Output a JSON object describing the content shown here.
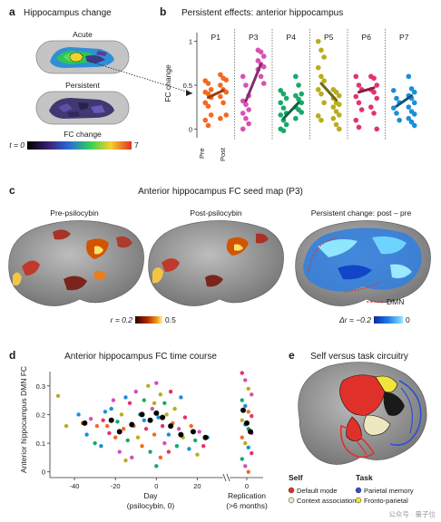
{
  "panel_a": {
    "label": "a",
    "title": "Hippocampus change",
    "top_label": "Acute",
    "bottom_label": "Persistent",
    "colorbar_title": "FC change",
    "colorbar_min": "t = 0",
    "colorbar_max": "7"
  },
  "panel_b": {
    "label": "b",
    "title": "Persistent effects: anterior hippocampus",
    "xticks": [
      "Pre",
      "Post"
    ]
  },
  "panel_c": {
    "label": "c",
    "title": "Anterior hippocampus FC seed map (P3)",
    "sub_titles": [
      "Pre-psilocybin",
      "Post-psilocybin",
      "Persistent change: post – pre"
    ],
    "colorbar_left": {
      "label": "r = 0.2",
      "max": "0.5"
    },
    "colorbar_right": {
      "label": "Δr = −0.2",
      "max": "0"
    },
    "legend_label": "DMN"
  },
  "panel_d": {
    "label": "d",
    "title": "Anterior hippocampus FC time course",
    "replication_label": "Replication",
    "replication_sublabel": "(>6 months)"
  },
  "panel_e": {
    "label": "e",
    "title": "Self versus task circuitry",
    "self_header": "Self",
    "task_header": "Task",
    "legend": [
      {
        "name": "Default mode",
        "color": "#e0302a",
        "group": "self"
      },
      {
        "name": "Context association",
        "color": "#efe7c0",
        "group": "self"
      },
      {
        "name": "Parietal memory",
        "color": "#2d4fd6",
        "group": "task"
      },
      {
        "name": "Fronto-parietal",
        "color": "#f2e43a",
        "group": "task"
      }
    ],
    "watermark": "公众号 · 量子位"
  },
  "chart_data": [
    {
      "type": "scatter",
      "ylabel": "FC change",
      "ylim": [
        -0.1,
        1.1
      ],
      "yticks": [
        0,
        0.5,
        1
      ],
      "series": [
        {
          "name": "P1",
          "color": "#f26a21",
          "pre": [
            0.55,
            0.52,
            0.45,
            0.42,
            0.4,
            0.36,
            0.3,
            0.26,
            0.16,
            0.1,
            0.04
          ],
          "post": [
            0.62,
            0.58,
            0.56,
            0.5,
            0.45,
            0.42,
            0.37,
            0.3,
            0.16,
            0.12
          ],
          "mean_pre": 0.36,
          "mean_post": 0.44
        },
        {
          "name": "P3",
          "color": "#d94fb2",
          "pre": [
            0.6,
            0.5,
            0.38,
            0.32,
            0.28,
            0.22,
            0.18,
            0.12,
            0.06,
            0.0
          ],
          "post": [
            0.9,
            0.88,
            0.83,
            0.78,
            0.74,
            0.71,
            0.68,
            0.6,
            0.52
          ],
          "mean_pre": 0.32,
          "mean_post": 0.74
        },
        {
          "name": "P4",
          "color": "#17a86b",
          "pre": [
            0.44,
            0.4,
            0.35,
            0.3,
            0.24,
            0.18,
            0.16,
            0.1,
            0.05,
            0.0,
            -0.02
          ],
          "post": [
            0.6,
            0.5,
            0.4,
            0.38,
            0.34,
            0.3,
            0.25,
            0.22,
            0.19,
            0.12
          ],
          "mean_pre": 0.12,
          "mean_post": 0.3
        },
        {
          "name": "P5",
          "color": "#b8ad1c",
          "pre": [
            1.0,
            0.9,
            0.82,
            0.7,
            0.6,
            0.55,
            0.45,
            0.4,
            0.3,
            0.15,
            0.1
          ],
          "post": [
            0.45,
            0.42,
            0.38,
            0.35,
            0.3,
            0.28,
            0.25,
            0.2,
            0.16,
            0.12,
            0.05,
            0.0
          ],
          "mean_pre": 0.52,
          "mean_post": 0.33
        },
        {
          "name": "P6",
          "color": "#e3336d",
          "pre": [
            0.6,
            0.5,
            0.45,
            0.37,
            0.3,
            0.22,
            0.1,
            0.02
          ],
          "post": [
            0.6,
            0.58,
            0.5,
            0.45,
            0.42,
            0.35,
            0.25,
            0.18,
            0.0
          ],
          "mean_pre": 0.42,
          "mean_post": 0.47
        },
        {
          "name": "P7",
          "color": "#1a8fd8",
          "pre": [
            0.44,
            0.35,
            0.3,
            0.24,
            0.18,
            0.1
          ],
          "post": [
            0.6,
            0.46,
            0.42,
            0.38,
            0.35,
            0.3,
            0.25,
            0.2,
            0.17,
            0.12,
            0.08,
            0.04
          ],
          "mean_pre": 0.26,
          "mean_post": 0.38
        }
      ]
    },
    {
      "type": "scatter",
      "xlabel": "Day",
      "xlabel_sub": "(psilocybin, 0)",
      "ylabel": "Anterior hippocampus DMN FC",
      "xticks": [
        -40,
        -20,
        0,
        20
      ],
      "replication_tick": 0,
      "yticks": [
        0,
        0.1,
        0.2,
        0.3
      ],
      "xlim": [
        -52,
        30
      ],
      "ylim": [
        -0.02,
        0.35
      ],
      "points": [
        {
          "x": -48,
          "y": 0.265,
          "c": "#b8ad1c"
        },
        {
          "x": -44,
          "y": 0.16,
          "c": "#b8ad1c"
        },
        {
          "x": -38,
          "y": 0.2,
          "c": "#1a8fd8"
        },
        {
          "x": -36,
          "y": 0.17,
          "c": "#f26a21"
        },
        {
          "x": -34,
          "y": 0.13,
          "c": "#1a8fd8"
        },
        {
          "x": -32,
          "y": 0.185,
          "c": "#d94fb2"
        },
        {
          "x": -30,
          "y": 0.1,
          "c": "#17a86b"
        },
        {
          "x": -29,
          "y": 0.16,
          "c": "#f26a21"
        },
        {
          "x": -27,
          "y": 0.09,
          "c": "#1a8fd8"
        },
        {
          "x": -25,
          "y": 0.21,
          "c": "#1a8fd8"
        },
        {
          "x": -24,
          "y": 0.16,
          "c": "#f26a21"
        },
        {
          "x": -23,
          "y": 0.135,
          "c": "#e3336d"
        },
        {
          "x": -22,
          "y": 0.22,
          "c": "#1a8fd8"
        },
        {
          "x": -21,
          "y": 0.25,
          "c": "#d94fb2"
        },
        {
          "x": -20,
          "y": 0.12,
          "c": "#f26a21"
        },
        {
          "x": -19,
          "y": 0.175,
          "c": "#17a86b"
        },
        {
          "x": -18,
          "y": 0.07,
          "c": "#d94fb2"
        },
        {
          "x": -17,
          "y": 0.2,
          "c": "#b8ad1c"
        },
        {
          "x": -16,
          "y": 0.15,
          "c": "#f26a21"
        },
        {
          "x": -15,
          "y": 0.26,
          "c": "#1a8fd8"
        },
        {
          "x": -14,
          "y": 0.11,
          "c": "#17a86b"
        },
        {
          "x": -13,
          "y": 0.24,
          "c": "#e3336d"
        },
        {
          "x": -12,
          "y": 0.05,
          "c": "#d94fb2"
        },
        {
          "x": -11,
          "y": 0.16,
          "c": "#f26a21"
        },
        {
          "x": -10,
          "y": 0.28,
          "c": "#d94fb2"
        },
        {
          "x": -9,
          "y": 0.12,
          "c": "#b8ad1c"
        },
        {
          "x": -8,
          "y": 0.2,
          "c": "#1a8fd8"
        },
        {
          "x": -7,
          "y": 0.09,
          "c": "#f26a21"
        },
        {
          "x": -6,
          "y": 0.25,
          "c": "#17a86b"
        },
        {
          "x": -5,
          "y": 0.15,
          "c": "#e3336d"
        },
        {
          "x": -4,
          "y": 0.3,
          "c": "#b8ad1c"
        },
        {
          "x": -3,
          "y": 0.07,
          "c": "#17a86b"
        },
        {
          "x": -2,
          "y": 0.22,
          "c": "#d94fb2"
        },
        {
          "x": -1,
          "y": 0.13,
          "c": "#f26a21"
        },
        {
          "x": 0,
          "y": 0.31,
          "c": "#d94fb2"
        },
        {
          "x": 0,
          "y": 0.02,
          "c": "#17a86b"
        },
        {
          "x": 1,
          "y": 0.19,
          "c": "#1a8fd8"
        },
        {
          "x": 2,
          "y": 0.27,
          "c": "#b8ad1c"
        },
        {
          "x": 2,
          "y": 0.05,
          "c": "#f26a21"
        },
        {
          "x": 3,
          "y": 0.16,
          "c": "#e3336d"
        },
        {
          "x": 4,
          "y": 0.24,
          "c": "#17a86b"
        },
        {
          "x": 4,
          "y": 0.1,
          "c": "#d94fb2"
        },
        {
          "x": 5,
          "y": 0.2,
          "c": "#b8ad1c"
        },
        {
          "x": 6,
          "y": 0.13,
          "c": "#1a8fd8"
        },
        {
          "x": 7,
          "y": 0.28,
          "c": "#e3336d"
        },
        {
          "x": 8,
          "y": 0.17,
          "c": "#f26a21"
        },
        {
          "x": 9,
          "y": 0.22,
          "c": "#b8ad1c"
        },
        {
          "x": 10,
          "y": 0.09,
          "c": "#17a86b"
        },
        {
          "x": 11,
          "y": 0.15,
          "c": "#d94fb2"
        },
        {
          "x": 12,
          "y": 0.26,
          "c": "#1a8fd8"
        },
        {
          "x": 13,
          "y": 0.12,
          "c": "#b8ad1c"
        },
        {
          "x": 14,
          "y": 0.19,
          "c": "#e3336d"
        },
        {
          "x": 16,
          "y": 0.08,
          "c": "#1a8fd8"
        },
        {
          "x": 17,
          "y": 0.16,
          "c": "#f26a21"
        },
        {
          "x": 19,
          "y": 0.11,
          "c": "#17a86b"
        },
        {
          "x": 20,
          "y": 0.06,
          "c": "#b8ad1c"
        },
        {
          "x": 21,
          "y": 0.14,
          "c": "#d94fb2"
        },
        {
          "x": 23,
          "y": 0.09,
          "c": "#e3336d"
        },
        {
          "x": 25,
          "y": 0.12,
          "c": "#1a8fd8"
        },
        {
          "x": -26,
          "y": 0.18,
          "c": "#e3336d"
        },
        {
          "x": -6,
          "y": 0.18,
          "c": "#1a8fd8"
        },
        {
          "x": -1,
          "y": 0.24,
          "c": "#b8ad1c"
        },
        {
          "x": 6,
          "y": 0.07,
          "c": "#e3336d"
        },
        {
          "x": -15,
          "y": 0.04,
          "c": "#b8ad1c"
        }
      ],
      "means": [
        {
          "x": -35,
          "y": 0.17
        },
        {
          "x": -22,
          "y": 0.18
        },
        {
          "x": -18,
          "y": 0.14
        },
        {
          "x": -12,
          "y": 0.165
        },
        {
          "x": -7,
          "y": 0.2
        },
        {
          "x": -3,
          "y": 0.18
        },
        {
          "x": 0,
          "y": 0.205
        },
        {
          "x": 3,
          "y": 0.19
        },
        {
          "x": 7,
          "y": 0.16
        },
        {
          "x": 12,
          "y": 0.13
        },
        {
          "x": 18,
          "y": 0.14
        },
        {
          "x": 24,
          "y": 0.12
        }
      ],
      "replication_points": [
        {
          "y": 0.345,
          "c": "#e3336d"
        },
        {
          "y": 0.32,
          "c": "#d94fb2"
        },
        {
          "y": 0.29,
          "c": "#b8ad1c"
        },
        {
          "y": 0.27,
          "c": "#d94fb2"
        },
        {
          "y": 0.25,
          "c": "#17a86b"
        },
        {
          "y": 0.23,
          "c": "#1a8fd8"
        },
        {
          "y": 0.21,
          "c": "#f26a21"
        },
        {
          "y": 0.195,
          "c": "#e3336d"
        },
        {
          "y": 0.18,
          "c": "#b8ad1c"
        },
        {
          "y": 0.165,
          "c": "#1a8fd8"
        },
        {
          "y": 0.15,
          "c": "#17a86b"
        },
        {
          "y": 0.135,
          "c": "#d94fb2"
        },
        {
          "y": 0.12,
          "c": "#f26a21"
        },
        {
          "y": 0.1,
          "c": "#b8ad1c"
        },
        {
          "y": 0.085,
          "c": "#1a8fd8"
        },
        {
          "y": 0.065,
          "c": "#e3336d"
        },
        {
          "y": 0.045,
          "c": "#17a86b"
        },
        {
          "y": 0.02,
          "c": "#d94fb2"
        },
        {
          "y": 0.0,
          "c": "#f26a21"
        }
      ],
      "replication_means": [
        0.215,
        0.17,
        0.14
      ]
    }
  ]
}
